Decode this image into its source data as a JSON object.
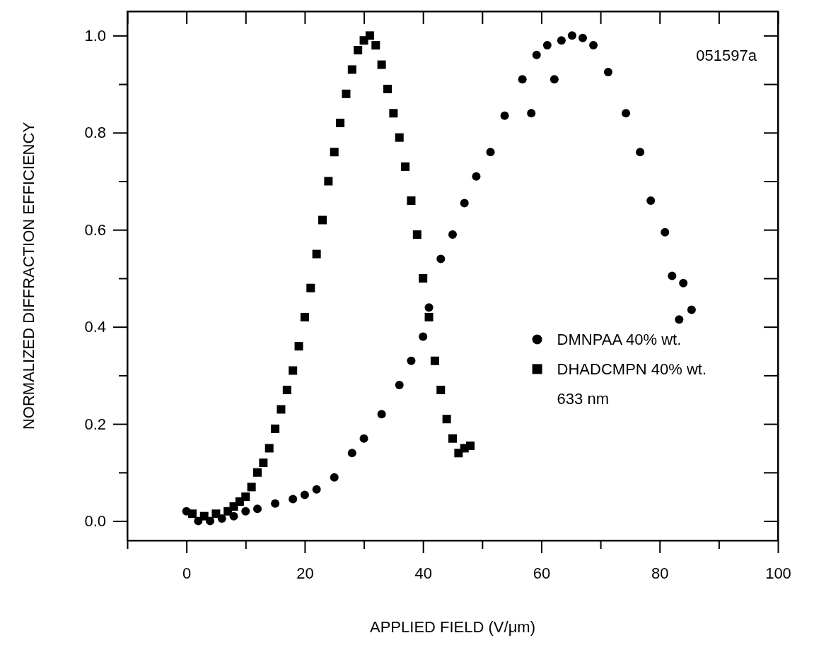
{
  "chart_data": {
    "type": "scatter",
    "xlabel": "APPLIED FIELD (V/μm)",
    "ylabel": "NORMALIZED DIFFRACTION EFFICIENCY",
    "xlim": [
      -10,
      100
    ],
    "ylim": [
      -0.04,
      1.05
    ],
    "xticks": [
      {
        "value": -10,
        "label": null
      },
      0,
      {
        "value": 10,
        "label": null
      },
      20,
      {
        "value": 30,
        "label": null
      },
      40,
      {
        "value": 50,
        "label": null
      },
      60,
      {
        "value": 70,
        "label": null
      },
      80,
      {
        "value": 90,
        "label": null
      },
      100
    ],
    "yticks": [
      {
        "value": 0,
        "label": "0.0"
      },
      {
        "value": 0.1,
        "label": null
      },
      0.2,
      {
        "value": 0.3,
        "label": null
      },
      0.4,
      {
        "value": 0.5,
        "label": null
      },
      0.6,
      {
        "value": 0.7,
        "label": null
      },
      0.8,
      {
        "value": 0.9,
        "label": null
      },
      {
        "value": 1,
        "label": "1.0"
      }
    ],
    "grid": false,
    "legend": "right",
    "annotations": [
      "051597a",
      "633 nm"
    ],
    "series": [
      {
        "name": "DMNPAA 40% wt.",
        "color": "#000000",
        "marker": "circle",
        "x": [
          0,
          2,
          4,
          6,
          8,
          10,
          12,
          15,
          18,
          20,
          22,
          25,
          28,
          30,
          33,
          36,
          38,
          40,
          41,
          43,
          45,
          47,
          49,
          51.4,
          53.8,
          56.8,
          58.3,
          59.2,
          61,
          62.2,
          63.4,
          65.2,
          67,
          68.8,
          71.3,
          74.3,
          76.7,
          78.5,
          80.9,
          82.1,
          83.3,
          84,
          85.4
        ],
        "values": [
          0.02,
          0,
          0,
          0.005,
          0.01,
          0.02,
          0.025,
          0.036,
          0.045,
          0.054,
          0.065,
          0.09,
          0.14,
          0.17,
          0.22,
          0.28,
          0.33,
          0.38,
          0.44,
          0.54,
          0.59,
          0.655,
          0.71,
          0.76,
          0.835,
          0.91,
          0.84,
          0.96,
          0.98,
          0.91,
          0.99,
          1.0,
          0.995,
          0.98,
          0.925,
          0.84,
          0.76,
          0.66,
          0.595,
          0.505,
          0.415,
          0.49,
          0.435
        ]
      },
      {
        "name": "DHADCMPN 40% wt.",
        "color": "#000000",
        "marker": "square",
        "x": [
          1,
          3,
          5,
          7,
          8,
          9,
          10,
          11,
          12,
          13,
          14,
          15,
          16,
          17,
          18,
          19,
          20,
          21,
          22,
          23,
          24,
          25,
          26,
          27,
          28,
          29,
          30,
          31,
          32,
          33,
          34,
          35,
          36,
          37,
          38,
          39,
          40,
          41,
          42,
          43,
          44,
          45,
          46,
          47,
          48
        ],
        "values": [
          0.015,
          0.01,
          0.015,
          0.02,
          0.03,
          0.04,
          0.05,
          0.07,
          0.1,
          0.12,
          0.15,
          0.19,
          0.23,
          0.27,
          0.31,
          0.36,
          0.42,
          0.48,
          0.55,
          0.62,
          0.7,
          0.76,
          0.82,
          0.88,
          0.93,
          0.97,
          0.99,
          1.0,
          0.98,
          0.94,
          0.89,
          0.84,
          0.79,
          0.73,
          0.66,
          0.59,
          0.5,
          0.42,
          0.33,
          0.27,
          0.21,
          0.17,
          0.14,
          0.15,
          0.155
        ]
      }
    ]
  }
}
